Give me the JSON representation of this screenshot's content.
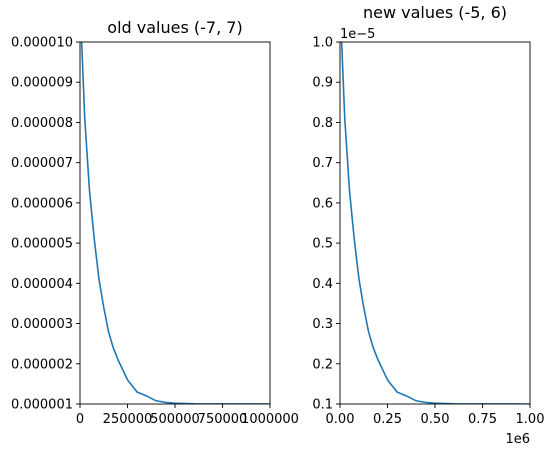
{
  "chart_data": [
    {
      "type": "line",
      "title": "old values (-7, 7)",
      "xlim": [
        0,
        1000000
      ],
      "ylim": [
        1e-06,
        1e-05
      ],
      "x_ticks": [
        0,
        250000,
        500000,
        750000,
        1000000
      ],
      "x_tick_labels": [
        "0",
        "250000",
        "500000",
        "750000",
        "1000000"
      ],
      "y_ticks": [
        1e-06,
        2e-06,
        3e-06,
        4e-06,
        5e-06,
        6e-06,
        7e-06,
        8e-06,
        9e-06,
        1e-05
      ],
      "y_tick_labels": [
        "0.000001",
        "0.000002",
        "0.000003",
        "0.000004",
        "0.000005",
        "0.000006",
        "0.000007",
        "0.000008",
        "0.000009",
        "0.000010"
      ],
      "x_offset_label": "",
      "y_offset_label": "",
      "series": [
        {
          "color": "#1f77b4",
          "x": [
            0,
            25000,
            50000,
            75000,
            100000,
            125000,
            150000,
            175000,
            200000,
            250000,
            300000,
            350000,
            400000,
            450000,
            500000,
            600000,
            700000,
            800000,
            900000,
            1000000
          ],
          "y": [
            1.1e-05,
            8.1e-06,
            6.3e-06,
            5.1e-06,
            4.1e-06,
            3.4e-06,
            2.8e-06,
            2.4e-06,
            2.1e-06,
            1.6e-06,
            1.3e-06,
            1.2e-06,
            1.08e-06,
            1.04e-06,
            1.02e-06,
            1.005e-06,
            1.002e-06,
            1.001e-06,
            1.0005e-06,
            1.0003e-06
          ]
        }
      ],
      "grid": false,
      "legend": "none"
    },
    {
      "type": "line",
      "title": "new values (-5, 6)",
      "xlim": [
        0,
        1000000
      ],
      "ylim": [
        1e-06,
        1e-05
      ],
      "x_ticks": [
        0,
        250000,
        500000,
        750000,
        1000000
      ],
      "x_tick_labels": [
        "0.00",
        "0.25",
        "0.50",
        "0.75",
        "1.00"
      ],
      "y_ticks": [
        1e-06,
        2e-06,
        3e-06,
        4e-06,
        5e-06,
        6e-06,
        7e-06,
        8e-06,
        9e-06,
        1e-05
      ],
      "y_tick_labels": [
        "0.1",
        "0.2",
        "0.3",
        "0.4",
        "0.5",
        "0.6",
        "0.7",
        "0.8",
        "0.9",
        "1.0"
      ],
      "x_offset_label": "1e6",
      "y_offset_label": "1e−5",
      "series": [
        {
          "color": "#1f77b4",
          "x": [
            0,
            25000,
            50000,
            75000,
            100000,
            125000,
            150000,
            175000,
            200000,
            250000,
            300000,
            350000,
            400000,
            450000,
            500000,
            600000,
            700000,
            800000,
            900000,
            1000000
          ],
          "y": [
            1.1e-05,
            8.1e-06,
            6.3e-06,
            5.1e-06,
            4.1e-06,
            3.4e-06,
            2.8e-06,
            2.4e-06,
            2.1e-06,
            1.6e-06,
            1.3e-06,
            1.2e-06,
            1.08e-06,
            1.04e-06,
            1.02e-06,
            1.005e-06,
            1.002e-06,
            1.001e-06,
            1.0005e-06,
            1.0003e-06
          ]
        }
      ],
      "grid": false,
      "legend": "none"
    }
  ]
}
